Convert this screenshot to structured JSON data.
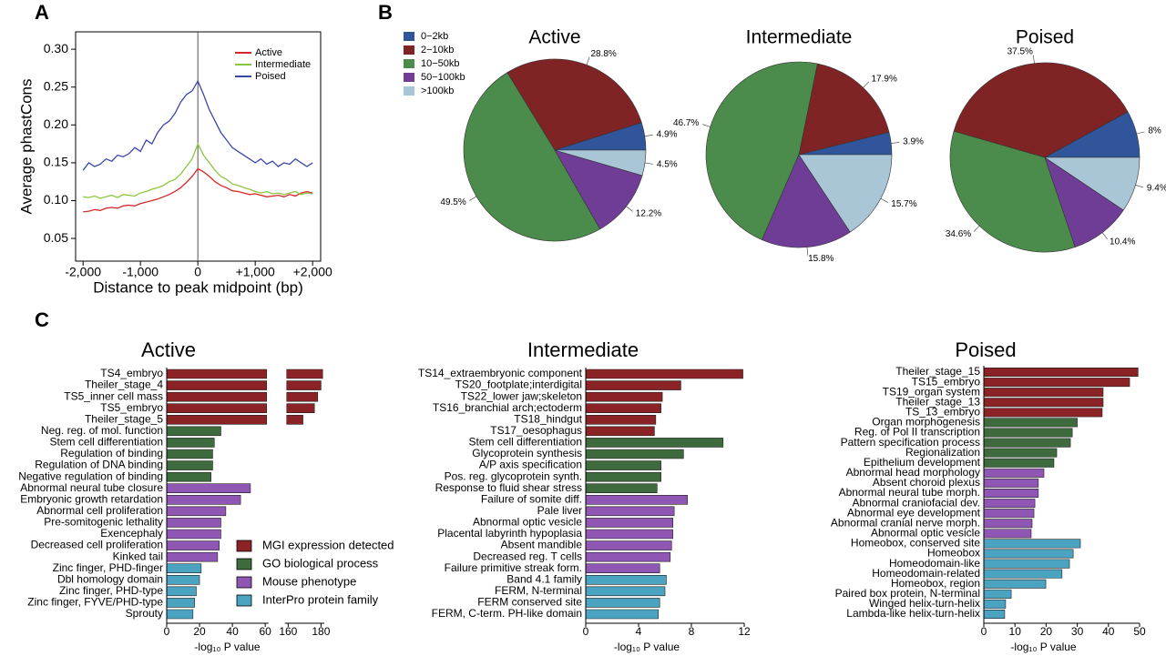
{
  "panel_labels": [
    "A",
    "B",
    "C"
  ],
  "chart_data": [
    {
      "type": "line",
      "y_label": "Average phastCons",
      "x_label": "Distance to peak midpoint (bp)",
      "xlim": [
        -2130,
        2140
      ],
      "ylim": [
        0.02,
        0.323
      ],
      "xticks": [
        {
          "value": -2000,
          "label": "-2,000"
        },
        {
          "value": -1000,
          "label": "-1,000"
        },
        0,
        {
          "value": 1000,
          "label": "+1,000"
        },
        {
          "value": 2000,
          "label": "+2,000"
        }
      ],
      "yticks": [
        0.05,
        {
          "value": 0.1,
          "label": "0.10"
        },
        0.15,
        {
          "value": 0.2,
          "label": "0.20"
        },
        0.25,
        {
          "value": 0.3,
          "label": "0.30"
        }
      ],
      "legend": "upper right",
      "x": [
        -2000,
        -1900,
        -1800,
        -1700,
        -1600,
        -1500,
        -1400,
        -1300,
        -1200,
        -1100,
        -1000,
        -900,
        -800,
        -700,
        -600,
        -500,
        -400,
        -300,
        -200,
        -100,
        0,
        100,
        200,
        300,
        400,
        500,
        600,
        700,
        800,
        900,
        1000,
        1100,
        1200,
        1300,
        1400,
        1500,
        1600,
        1700,
        1800,
        1900,
        2000
      ],
      "series": [
        {
          "name": "Active",
          "color": "#d62728",
          "values": [
            0.085,
            0.086,
            0.088,
            0.087,
            0.09,
            0.091,
            0.09,
            0.093,
            0.094,
            0.093,
            0.096,
            0.098,
            0.1,
            0.102,
            0.105,
            0.108,
            0.112,
            0.117,
            0.124,
            0.132,
            0.142,
            0.138,
            0.132,
            0.125,
            0.12,
            0.117,
            0.113,
            0.112,
            0.11,
            0.108,
            0.109,
            0.107,
            0.105,
            0.106,
            0.107,
            0.105,
            0.108,
            0.106,
            0.11,
            0.112,
            0.11
          ]
        },
        {
          "name": "Intermediate",
          "color": "#8cc63f",
          "values": [
            0.105,
            0.104,
            0.106,
            0.103,
            0.105,
            0.107,
            0.104,
            0.108,
            0.107,
            0.106,
            0.11,
            0.112,
            0.115,
            0.117,
            0.12,
            0.125,
            0.128,
            0.135,
            0.145,
            0.155,
            0.175,
            0.16,
            0.15,
            0.14,
            0.132,
            0.128,
            0.122,
            0.12,
            0.117,
            0.115,
            0.112,
            0.11,
            0.112,
            0.109,
            0.11,
            0.108,
            0.11,
            0.112,
            0.108,
            0.11,
            0.109
          ]
        },
        {
          "name": "Poised",
          "color": "#3b46a8",
          "values": [
            0.14,
            0.15,
            0.145,
            0.148,
            0.155,
            0.152,
            0.16,
            0.158,
            0.162,
            0.17,
            0.165,
            0.18,
            0.175,
            0.19,
            0.2,
            0.205,
            0.215,
            0.23,
            0.24,
            0.245,
            0.258,
            0.24,
            0.22,
            0.205,
            0.19,
            0.18,
            0.17,
            0.165,
            0.16,
            0.155,
            0.15,
            0.155,
            0.148,
            0.152,
            0.145,
            0.15,
            0.148,
            0.155,
            0.15,
            0.145,
            0.15
          ]
        }
      ]
    },
    {
      "type": "pie",
      "title": "Active",
      "categories": [
        "0−2kb",
        "2−10kb",
        "10−50kb",
        "50−100kb",
        ">100kb"
      ],
      "colors": [
        "#30559a",
        "#7f2325",
        "#4b8b4b",
        "#6f3d96",
        "#a9c6d6"
      ],
      "values": [
        4.9,
        28.8,
        49.5,
        12.2,
        4.5
      ],
      "value_labels": [
        "4.9%",
        "28.8%",
        "49.5%",
        "12.2%",
        "4.5%"
      ]
    },
    {
      "type": "pie",
      "title": "Intermediate",
      "colors": [
        "#30559a",
        "#7f2325",
        "#4b8b4b",
        "#6f3d96",
        "#a9c6d6"
      ],
      "values": [
        3.9,
        17.9,
        46.7,
        15.8,
        15.7
      ],
      "value_labels": [
        "3.9%",
        "17.9%",
        "46.7%",
        "15.8%",
        "15.7%"
      ]
    },
    {
      "type": "pie",
      "title": "Poised",
      "colors": [
        "#30559a",
        "#7f2325",
        "#4b8b4b",
        "#6f3d96",
        "#a9c6d6"
      ],
      "values": [
        8,
        37.5,
        34.6,
        10.4,
        9.4
      ],
      "value_labels": [
        "8%",
        "37.5%",
        "34.6%",
        "10.4%",
        "9.4%"
      ]
    },
    {
      "type": "bar",
      "title": "Active",
      "x_label": "-log₁₀ P value",
      "xlim": [
        0,
        182
      ],
      "axis_break": [
        62,
        158
      ],
      "xticks": [
        0,
        20,
        40,
        60,
        160,
        180
      ],
      "groups": [
        {
          "name": "MGI expression detected",
          "color": "#8b2326",
          "categories": [
            "TS4_embryo",
            "Theiler_stage_4",
            "TS5_inner cell mass",
            "TS5_embryo",
            "Theiler_stage_5"
          ],
          "values": [
            181,
            180,
            178,
            176,
            169
          ]
        },
        {
          "name": "GO biological process",
          "color": "#3d6b3d",
          "categories": [
            "Neg. reg. of mol. function",
            "Stem cell differentiation",
            "Regulation of binding",
            "Regulation of DNA binding",
            "Negative regulation of binding"
          ],
          "values": [
            33,
            29,
            28,
            28,
            27
          ]
        },
        {
          "name": "Mouse phenotype",
          "color": "#8f56b3",
          "categories": [
            "Abnormal neural tube closure",
            "Embryonic growth retardation",
            "Abnormal cell proliferation",
            "Pre-somitogenic lethality",
            "Exencephaly",
            "Decreased cell proliferation",
            "Kinked tail"
          ],
          "values": [
            51,
            45,
            36,
            33,
            33,
            32,
            31
          ]
        },
        {
          "name": "InterPro protein family",
          "color": "#4aa3c0",
          "categories": [
            "Zinc finger, PHD-finger",
            "Dbl homology domain",
            "Zinc finger, PHD-type",
            "Zinc finger, FYVE/PHD-type",
            "Sprouty"
          ],
          "values": [
            21,
            20,
            18,
            17,
            16
          ]
        }
      ]
    },
    {
      "type": "bar",
      "title": "Intermediate",
      "x_label": "-log₁₀ P value",
      "xlim": [
        0,
        12
      ],
      "xticks": [
        0,
        4,
        8,
        12
      ],
      "groups": [
        {
          "color": "#8b2326",
          "categories": [
            "TS14_extraembryonic component",
            "TS20_footplate;interdigital",
            "TS22_lower jaw;skeleton",
            "TS16_branchial arch;ectoderm",
            "TS18_hindgut",
            "TS17_oesophagus"
          ],
          "values": [
            11.9,
            7.2,
            5.8,
            5.7,
            5.3,
            5.2
          ]
        },
        {
          "color": "#3d6b3d",
          "categories": [
            "Stem cell differentiation",
            "Glycoprotein synthesis",
            "A/P axis specification",
            "Pos. reg. glycoprotein synth.",
            "Response to fluid shear stress"
          ],
          "values": [
            10.4,
            7.4,
            5.7,
            5.7,
            5.4
          ]
        },
        {
          "color": "#8f56b3",
          "categories": [
            "Failure of somite diff.",
            "Pale liver",
            "Abnormal optic vesicle",
            "Placental labyrinth hypoplasia",
            "Absent mandible",
            "Decreased reg. T cells",
            "Failure primitive streak form."
          ],
          "values": [
            7.7,
            6.7,
            6.6,
            6.6,
            6.5,
            6.4,
            5.6
          ]
        },
        {
          "color": "#4aa3c0",
          "categories": [
            "Band 4.1 family",
            "FERM, N-terminal",
            "FERM conserved site",
            "FERM, C-term. PH-like domain"
          ],
          "values": [
            6.1,
            6,
            5.6,
            5.5
          ]
        }
      ]
    },
    {
      "type": "bar",
      "title": "Poised",
      "x_label": "-log₁₀ P value",
      "xlim": [
        0,
        50
      ],
      "xticks": [
        0,
        10,
        20,
        30,
        40,
        50
      ],
      "groups": [
        {
          "color": "#8b2326",
          "categories": [
            "Theiler_stage_15",
            "TS15_embryo",
            "TS19_organ system",
            "Theiler_stage_13",
            "TS_13_embryo"
          ],
          "values": [
            49.5,
            46.8,
            38.3,
            38.3,
            38
          ]
        },
        {
          "color": "#3d6b3d",
          "categories": [
            "Organ morphogenesis",
            "Reg. of Pol II transcription",
            "Pattern specification process",
            "Regionalization",
            "Epithelium development"
          ],
          "values": [
            30,
            28.4,
            27.8,
            23.4,
            22.5
          ]
        },
        {
          "color": "#8f56b3",
          "categories": [
            "Abnormal head morphology",
            "Absent choroid plexus",
            "Abnormal neural tube morph.",
            "Abnormal craniofacial dev.",
            "Abnormal eye development",
            "Abnormal cranial nerve morph.",
            "Abnormal optic vesicle"
          ],
          "values": [
            19.3,
            17.5,
            17.5,
            16.4,
            16.1,
            15.5,
            15.2
          ]
        },
        {
          "color": "#4aa3c0",
          "categories": [
            "Homeobox, conserved site",
            "Homeobox",
            "Homeodomain-like",
            "Homeodomain-related",
            "Homeobox, region",
            "Paired box protein, N-terminal",
            "Winged helix-turn-helix",
            "Lambda-like helix-turn-helix"
          ],
          "values": [
            31,
            28.7,
            27.5,
            25.1,
            19.9,
            8.8,
            7,
            6.7
          ]
        }
      ]
    }
  ]
}
